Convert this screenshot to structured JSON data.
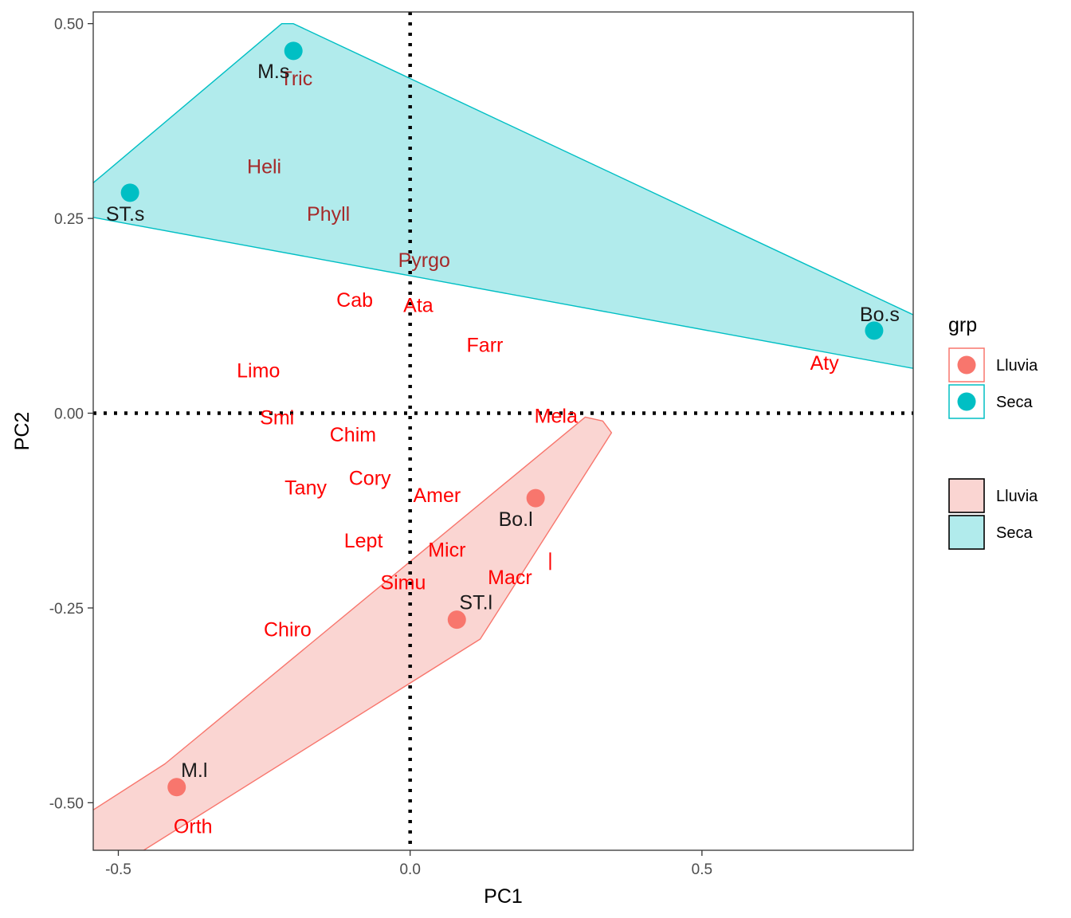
{
  "chart_data": {
    "type": "scatter",
    "xlabel": "PC1",
    "ylabel": "PC2",
    "xlim": [
      -0.543,
      0.862
    ],
    "ylim": [
      -0.561,
      0.515
    ],
    "x_ticks": [
      {
        "value": -0.5,
        "label": "-0.5"
      },
      {
        "value": 0.0,
        "label": "0.0"
      },
      {
        "value": 0.5,
        "label": "0.5"
      }
    ],
    "y_ticks": [
      {
        "value": 0.5,
        "label": "0.50"
      },
      {
        "value": 0.25,
        "label": "0.25"
      },
      {
        "value": 0.0,
        "label": "0.00"
      },
      {
        "value": -0.25,
        "label": "-0.25"
      },
      {
        "value": -0.5,
        "label": "-0.50"
      }
    ],
    "reference_lines": {
      "x": 0,
      "y": 0,
      "style": "dotted"
    },
    "grid": false,
    "groups": [
      {
        "name": "Lluvia",
        "color": "#F8766D",
        "fill": "#FAD5D2"
      },
      {
        "name": "Seca",
        "color": "#00BFC4",
        "fill": "#B1EBEC"
      }
    ],
    "sites": [
      {
        "label": "M.s",
        "group": "Seca",
        "x": -0.2,
        "y": 0.465
      },
      {
        "label": "ST.s",
        "group": "Seca",
        "x": -0.48,
        "y": 0.283
      },
      {
        "label": "Bo.s",
        "group": "Seca",
        "x": 0.795,
        "y": 0.106
      },
      {
        "label": "Bo.l",
        "group": "Lluvia",
        "x": 0.215,
        "y": -0.109
      },
      {
        "label": "ST.l",
        "group": "Lluvia",
        "x": 0.08,
        "y": -0.265
      },
      {
        "label": "M.l",
        "group": "Lluvia",
        "x": -0.4,
        "y": -0.48
      }
    ],
    "species": [
      {
        "label": "Tric",
        "x": -0.195,
        "y": 0.43,
        "color": "#A52A2A"
      },
      {
        "label": "Heli",
        "x": -0.25,
        "y": 0.317,
        "color": "#A52A2A"
      },
      {
        "label": "Phyll",
        "x": -0.14,
        "y": 0.256,
        "color": "#A52A2A"
      },
      {
        "label": "Pyrgo",
        "x": 0.024,
        "y": 0.197,
        "color": "#A52A2A"
      },
      {
        "label": "Cab",
        "x": -0.095,
        "y": 0.146,
        "color": "#FF0000"
      },
      {
        "label": "Ata",
        "x": 0.014,
        "y": 0.139,
        "color": "#FF0000"
      },
      {
        "label": "Farr",
        "x": 0.128,
        "y": 0.088,
        "color": "#FF0000"
      },
      {
        "label": "Limo",
        "x": -0.26,
        "y": 0.055,
        "color": "#FF0000"
      },
      {
        "label": "Aty",
        "x": 0.71,
        "y": 0.065,
        "color": "#FF0000"
      },
      {
        "label": "Mela",
        "x": 0.25,
        "y": -0.003,
        "color": "#FF0000"
      },
      {
        "label": "Smi",
        "x": -0.228,
        "y": -0.005,
        "color": "#FF0000"
      },
      {
        "label": "Chim",
        "x": -0.098,
        "y": -0.027,
        "color": "#FF0000"
      },
      {
        "label": "Cory",
        "x": -0.069,
        "y": -0.083,
        "color": "#FF0000"
      },
      {
        "label": "Tany",
        "x": -0.179,
        "y": -0.095,
        "color": "#FF0000"
      },
      {
        "label": "Amer",
        "x": 0.046,
        "y": -0.105,
        "color": "#FF0000"
      },
      {
        "label": "Lept",
        "x": -0.08,
        "y": -0.163,
        "color": "#FF0000"
      },
      {
        "label": "Micr",
        "x": 0.063,
        "y": -0.175,
        "color": "#FF0000"
      },
      {
        "label": "Macr",
        "x": 0.171,
        "y": -0.21,
        "color": "#FF0000"
      },
      {
        "label": "Simu",
        "x": -0.012,
        "y": -0.217,
        "color": "#FF0000"
      },
      {
        "label": "Chiro",
        "x": -0.21,
        "y": -0.277,
        "color": "#FF0000"
      },
      {
        "label": "Orth",
        "x": -0.372,
        "y": -0.53,
        "color": "#FF0000"
      }
    ],
    "hulls": [
      {
        "group": "Seca",
        "points": [
          [
            -0.555,
            0.288
          ],
          [
            -0.22,
            0.5
          ],
          [
            -0.2,
            0.5
          ],
          [
            0.88,
            0.12
          ],
          [
            0.88,
            0.055
          ],
          [
            -0.555,
            0.253
          ]
        ]
      },
      {
        "group": "Lluvia",
        "points": [
          [
            -0.555,
            -0.515
          ],
          [
            -0.42,
            -0.45
          ],
          [
            0.3,
            -0.005
          ],
          [
            0.33,
            -0.01
          ],
          [
            0.345,
            -0.025
          ],
          [
            0.12,
            -0.29
          ],
          [
            -0.465,
            -0.565
          ],
          [
            -0.555,
            -0.565
          ]
        ]
      }
    ],
    "legend": {
      "position": "right",
      "title": "grp",
      "point_entries": [
        "Lluvia",
        "Seca"
      ],
      "fill_entries": [
        "Lluvia",
        "Seca"
      ]
    }
  }
}
